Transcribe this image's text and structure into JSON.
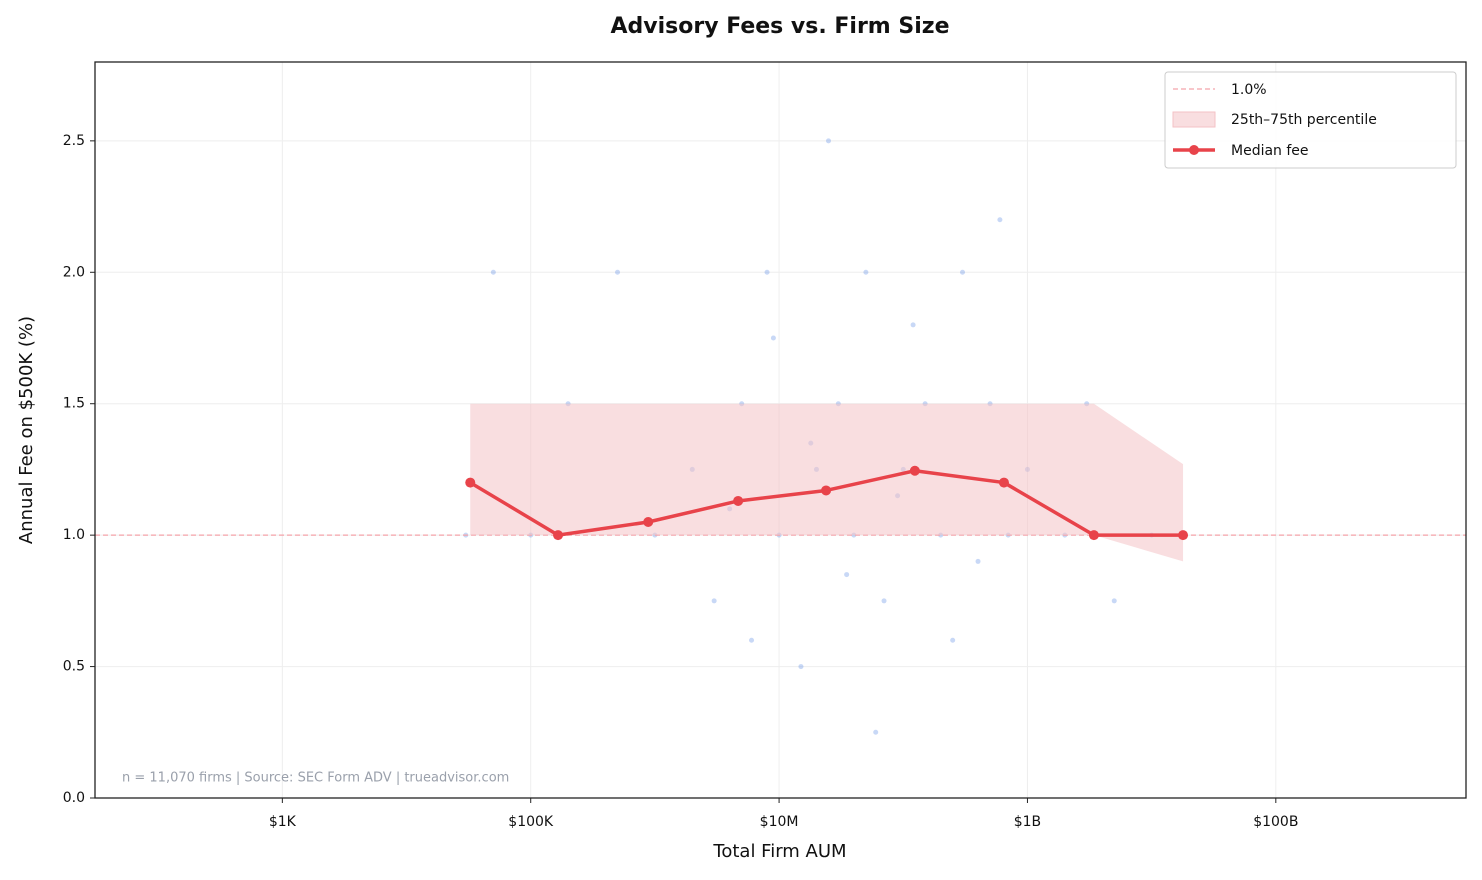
{
  "chart_data": {
    "type": "line",
    "title": "Advisory Fees vs. Firm Size",
    "xlabel": "Total Firm AUM",
    "ylabel": "Annual Fee on $500K (%)",
    "note": "n = 11,070 firms  |  Source: SEC Form ADV  |  trueadvisor.com",
    "xscale": "log",
    "xlim": [
      31,
      3400000000000
    ],
    "ylim": [
      0,
      2.8
    ],
    "xticks": [
      {
        "value": 1000,
        "label": "$1K"
      },
      {
        "value": 100000,
        "label": "$100K"
      },
      {
        "value": 10000000,
        "label": "$10M"
      },
      {
        "value": 1000000000,
        "label": "$1B"
      },
      {
        "value": 100000000000,
        "label": "$100B"
      }
    ],
    "yticks": [
      {
        "value": 0,
        "label": "0.0"
      },
      0.5,
      {
        "value": 1,
        "label": "1.0"
      },
      1.5,
      {
        "value": 2,
        "label": "2.0"
      },
      2.5
    ],
    "grid": true,
    "legend": "upper right",
    "reference": {
      "value": 1,
      "label": "1.0%",
      "color": "#f4a3aa"
    },
    "scatter": {
      "color": "#4a7ee0",
      "x": [
        200000,
        500000,
        1000000,
        2000000,
        3000000,
        5000000,
        8000000,
        10000000,
        15000000,
        20000000,
        30000000,
        40000000,
        50000000,
        70000000,
        100000000,
        150000000,
        200000000,
        300000000,
        400000000,
        500000000,
        700000000,
        1000000000,
        2000000000,
        3000000000,
        5000000000,
        10000000000,
        30000,
        50000,
        100000,
        6000000,
        9000000,
        25000000,
        60000000,
        120000000,
        250000000,
        600000000,
        4000000,
        18000000,
        35000000,
        90000000
      ],
      "values": [
        1.5,
        2.0,
        1.0,
        1.25,
        0.75,
        1.5,
        2.0,
        1.0,
        0.5,
        1.25,
        1.5,
        1.0,
        2.0,
        0.75,
        1.25,
        1.5,
        1.0,
        2.0,
        0.9,
        1.5,
        1.0,
        1.25,
        1.0,
        1.5,
        0.75,
        1.0,
        1.0,
        2.0,
        1.0,
        0.6,
        1.75,
        2.5,
        0.25,
        1.8,
        0.6,
        2.2,
        1.1,
        1.35,
        0.85,
        1.15
      ]
    },
    "x": [
      32600,
      166000,
      883000,
      4680000,
      23900000,
      124000000,
      647000000,
      3430000000,
      17900000000
    ],
    "band": {
      "name": "25th–75th percentile",
      "color": "#f4c2c6",
      "lower": [
        1.0,
        1.0,
        1.0,
        1.0,
        1.0,
        1.0,
        1.0,
        1.0,
        0.9
      ],
      "upper": [
        1.5,
        1.5,
        1.5,
        1.5,
        1.5,
        1.5,
        1.5,
        1.5,
        1.27
      ]
    },
    "series": [
      {
        "name": "Median fee",
        "color": "#e8434a",
        "values": [
          1.2,
          1.0,
          1.05,
          1.13,
          1.17,
          1.245,
          1.2,
          1.0,
          1.0
        ]
      }
    ]
  }
}
